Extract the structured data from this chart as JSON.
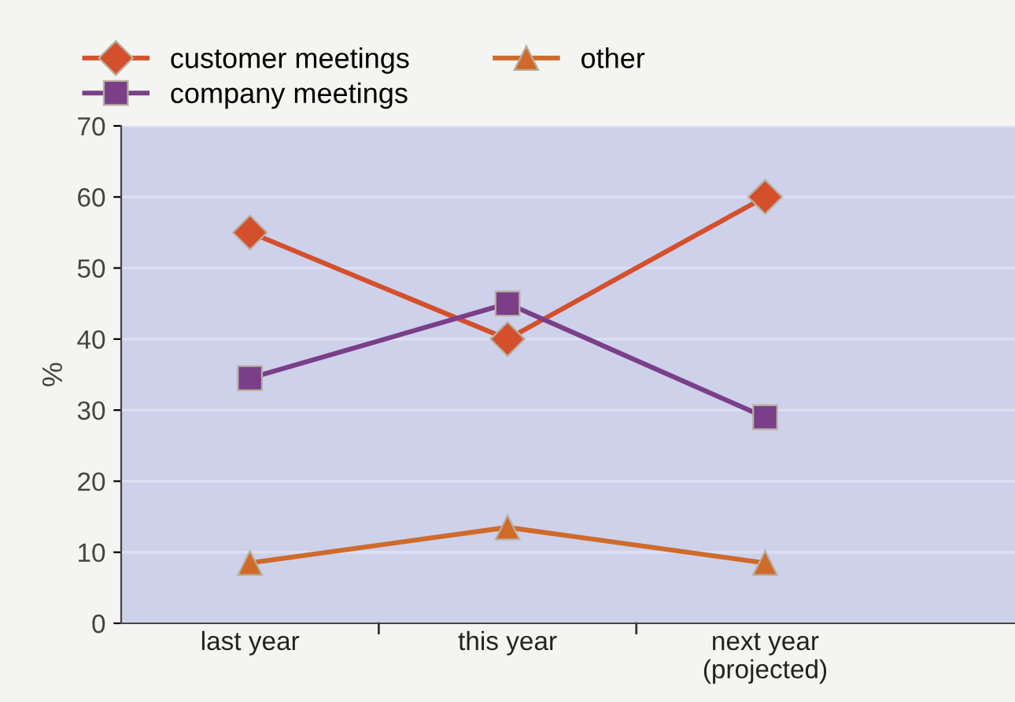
{
  "chart_data": {
    "type": "line",
    "categories": [
      "last year",
      "this year",
      "next year\n(projected)"
    ],
    "ylabel": "%",
    "ylim": [
      0,
      70
    ],
    "yticks": [
      0,
      10,
      20,
      30,
      40,
      50,
      60,
      70
    ],
    "grid": "y",
    "legend": "top left",
    "line_style": "solid",
    "series": [
      {
        "name": "customer meetings",
        "color": "#d4502c",
        "marker": "diamond",
        "values": [
          55,
          40,
          60
        ]
      },
      {
        "name": "company meetings",
        "color": "#7a3f88",
        "marker": "square",
        "values": [
          34.5,
          45,
          29
        ]
      },
      {
        "name": "other",
        "color": "#d06a2a",
        "marker": "triangle",
        "values": [
          8.5,
          13.5,
          8.5
        ]
      }
    ]
  }
}
